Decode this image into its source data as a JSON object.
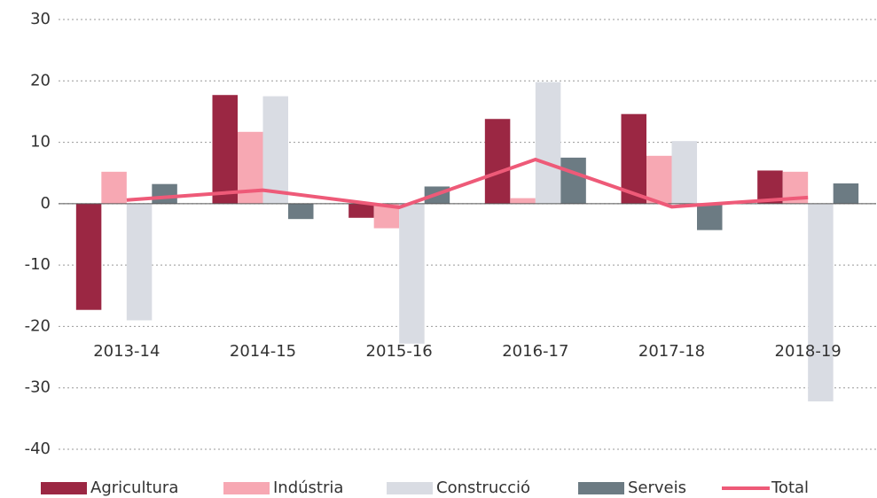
{
  "chart_data": {
    "type": "bar",
    "categories": [
      "2013-14",
      "2014-15",
      "2015-16",
      "2016-17",
      "2017-18",
      "2018-19"
    ],
    "series": [
      {
        "name": "Agricultura",
        "color": "#9b2743",
        "values": [
          -17.3,
          17.7,
          -2.3,
          13.8,
          14.6,
          5.4
        ]
      },
      {
        "name": "Indústria",
        "color": "#f7a8b3",
        "values": [
          5.2,
          11.7,
          -4,
          0.9,
          7.8,
          5.2
        ]
      },
      {
        "name": "Construcció",
        "color": "#d9dce3",
        "values": [
          -19,
          17.5,
          -22.8,
          19.8,
          10.2,
          -32.2
        ]
      },
      {
        "name": "Serveis",
        "color": "#6c7b83",
        "values": [
          3.2,
          -2.5,
          2.8,
          7.5,
          -4.3,
          3.3
        ]
      },
      {
        "name": "Total",
        "type": "line",
        "color": "#ee5a78",
        "values": [
          0.6,
          2.2,
          -0.6,
          7.2,
          -0.5,
          1.0
        ]
      }
    ],
    "ylim": [
      -40,
      30
    ],
    "yticks": [
      -40,
      -30,
      -20,
      -10,
      0,
      10,
      20,
      30
    ],
    "grid": true,
    "legend": "bottom"
  }
}
